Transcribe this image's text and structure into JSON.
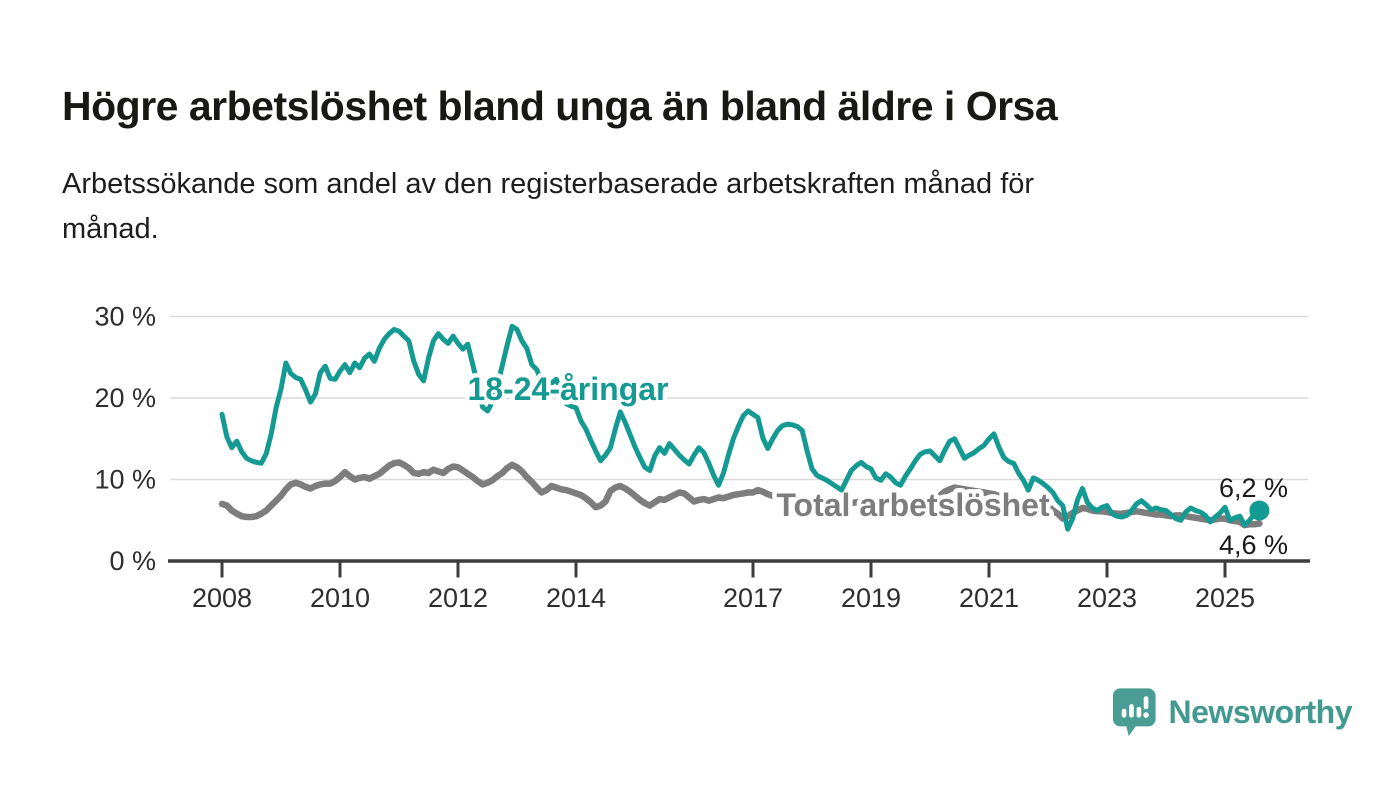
{
  "header": {
    "title": "Högre arbetslöshet bland unga än bland äldre i Orsa",
    "subtitle_lines": [
      "Arbetssökande som andel av den registerbaserade arbetskraften månad för",
      "månad."
    ]
  },
  "chart_data": {
    "type": "line",
    "x_unit": "month",
    "x_start": "2008-01",
    "x_end": "2025-08",
    "interval": "monthly",
    "x_tick_labels": [
      "2008",
      "2010",
      "2012",
      "2014",
      "2017",
      "2019",
      "2021",
      "2023",
      "2025"
    ],
    "y_tick_values": [
      0,
      10,
      20,
      30
    ],
    "y_tick_labels": [
      "0 %",
      "10 %",
      "20 %",
      "30 %"
    ],
    "ylim": [
      0,
      31
    ],
    "grid": "horizontal",
    "legend_position": "inline-labels",
    "series": [
      {
        "name": "18-24-åringar",
        "color": "#149a92",
        "end_value": 6.2,
        "end_value_label": "6,2 %",
        "values": [
          18.0,
          15.2,
          13.9,
          14.7,
          13.4,
          12.6,
          12.3,
          12.1,
          12.0,
          13.2,
          15.6,
          18.8,
          21.1,
          24.3,
          23.0,
          22.5,
          22.3,
          21.0,
          19.5,
          20.5,
          23.1,
          23.9,
          22.4,
          22.3,
          23.3,
          24.1,
          23.1,
          24.3,
          23.7,
          24.9,
          25.4,
          24.5,
          26.1,
          27.2,
          27.9,
          28.4,
          28.2,
          27.6,
          27.0,
          24.5,
          22.9,
          22.1,
          24.9,
          27.0,
          27.9,
          27.2,
          26.7,
          27.6,
          26.7,
          26.0,
          26.6,
          24.1,
          21.5,
          18.9,
          18.4,
          19.5,
          21.5,
          24.0,
          26.5,
          28.8,
          28.4,
          27.0,
          26.1,
          24.1,
          23.5,
          22.0,
          21.0,
          21.8,
          22.3,
          20.8,
          19.3,
          19.0,
          18.8,
          17.2,
          16.2,
          14.8,
          13.5,
          12.3,
          13.0,
          13.9,
          16.2,
          18.3,
          17.0,
          15.5,
          14.0,
          12.7,
          11.5,
          11.1,
          12.9,
          13.9,
          13.2,
          14.4,
          13.7,
          13.0,
          12.4,
          11.9,
          13.0,
          13.9,
          13.3,
          12.0,
          10.5,
          9.3,
          10.8,
          13.0,
          15.0,
          16.5,
          17.8,
          18.4,
          18.0,
          17.6,
          15.1,
          13.8,
          15.0,
          16.0,
          16.6,
          16.8,
          16.7,
          16.5,
          16.0,
          13.5,
          11.3,
          10.5,
          10.2,
          9.9,
          9.5,
          9.1,
          8.7,
          9.9,
          11.1,
          11.7,
          12.1,
          11.6,
          11.3,
          10.2,
          9.9,
          10.7,
          10.3,
          9.6,
          9.3,
          10.4,
          11.3,
          12.3,
          13.1,
          13.4,
          13.5,
          12.9,
          12.3,
          13.6,
          14.7,
          15.0,
          13.8,
          12.6,
          13.0,
          13.3,
          13.8,
          14.2,
          15.0,
          15.6,
          14.0,
          12.7,
          12.2,
          12.0,
          10.8,
          9.9,
          8.7,
          10.2,
          9.9,
          9.5,
          9.0,
          8.4,
          7.4,
          6.8,
          3.9,
          5.2,
          7.5,
          8.9,
          7.2,
          6.5,
          6.2,
          6.6,
          6.8,
          5.8,
          5.5,
          5.4,
          5.6,
          6.2,
          7.0,
          7.4,
          6.9,
          6.3,
          6.5,
          6.3,
          6.2,
          5.7,
          5.2,
          5.0,
          6.0,
          6.5,
          6.2,
          6.0,
          5.6,
          4.8,
          5.4,
          5.9,
          6.6,
          5.0,
          5.3,
          5.5,
          4.4,
          5.0,
          5.8,
          6.2
        ]
      },
      {
        "name": "Total arbetslöshet",
        "color": "#7d7d7d",
        "end_value": 4.6,
        "end_value_label": "4,6 %",
        "values": [
          7.0,
          6.8,
          6.2,
          5.8,
          5.5,
          5.4,
          5.4,
          5.5,
          5.8,
          6.2,
          6.8,
          7.4,
          8.0,
          8.8,
          9.4,
          9.6,
          9.4,
          9.1,
          8.9,
          9.2,
          9.4,
          9.5,
          9.5,
          9.8,
          10.3,
          10.9,
          10.4,
          10.0,
          10.2,
          10.3,
          10.1,
          10.4,
          10.7,
          11.2,
          11.7,
          12.0,
          12.1,
          11.8,
          11.4,
          10.8,
          10.7,
          10.9,
          10.8,
          11.2,
          11.0,
          10.8,
          11.3,
          11.6,
          11.5,
          11.1,
          10.7,
          10.3,
          9.8,
          9.4,
          9.6,
          9.9,
          10.4,
          10.8,
          11.4,
          11.8,
          11.5,
          11.0,
          10.3,
          9.7,
          9.0,
          8.4,
          8.7,
          9.2,
          9.0,
          8.8,
          8.7,
          8.5,
          8.3,
          8.1,
          7.7,
          7.2,
          6.6,
          6.8,
          7.3,
          8.6,
          9.0,
          9.2,
          8.9,
          8.5,
          8.0,
          7.5,
          7.1,
          6.8,
          7.2,
          7.6,
          7.5,
          7.8,
          8.1,
          8.4,
          8.3,
          7.8,
          7.3,
          7.5,
          7.6,
          7.4,
          7.6,
          7.8,
          7.7,
          7.9,
          8.1,
          8.2,
          8.3,
          8.4,
          8.4,
          8.7,
          8.5,
          8.2,
          8.0,
          8.2,
          8.3,
          8.1,
          7.9,
          7.8,
          7.7,
          7.6,
          7.5,
          7.4,
          7.2,
          7.0,
          6.9,
          6.8,
          6.9,
          7.0,
          7.1,
          7.2,
          7.3,
          7.2,
          7.1,
          7.0,
          6.9,
          6.8,
          6.7,
          6.8,
          7.0,
          7.1,
          7.2,
          7.3,
          7.4,
          7.5,
          7.6,
          7.7,
          8.0,
          8.5,
          8.8,
          9.0,
          8.9,
          8.8,
          8.7,
          8.6,
          8.5,
          8.4,
          8.3,
          8.2,
          8.0,
          7.8,
          7.6,
          7.4,
          7.2,
          7.1,
          7.2,
          7.1,
          7.1,
          7.1,
          6.8,
          6.2,
          5.8,
          5.2,
          5.5,
          5.9,
          6.2,
          6.5,
          6.4,
          6.2,
          6.1,
          6.1,
          6.0,
          5.9,
          5.8,
          5.8,
          5.9,
          6.0,
          6.1,
          6.0,
          5.9,
          5.8,
          5.7,
          5.7,
          5.6,
          5.5,
          5.6,
          5.6,
          5.5,
          5.4,
          5.3,
          5.2,
          5.1,
          5.0,
          5.1,
          5.2,
          5.2,
          5.0,
          4.9,
          4.8,
          4.4,
          4.5,
          4.5,
          4.6
        ]
      }
    ]
  },
  "branding": {
    "name": "Newsworthy",
    "color": "#42998f",
    "icon": "newsworthy-bubble-chart-icon",
    "icon_color": "#4a9d95"
  }
}
